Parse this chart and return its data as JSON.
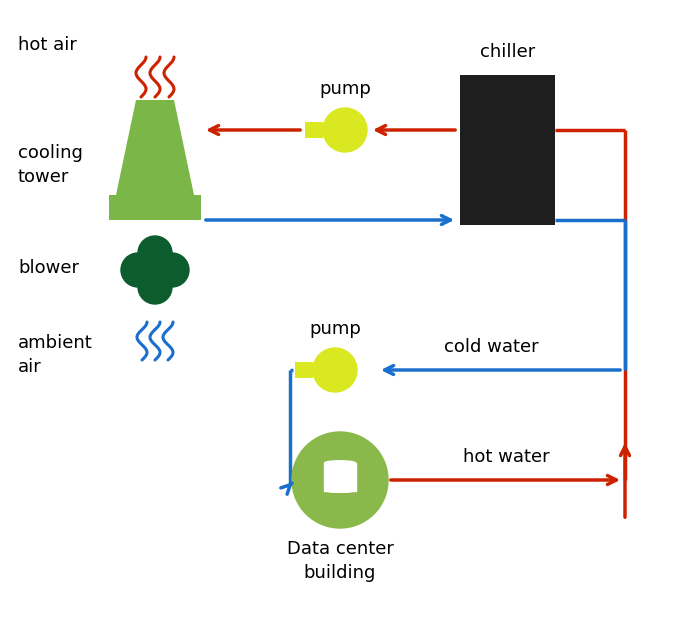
{
  "bg_color": "#ffffff",
  "red_color": "#cc2200",
  "blue_color": "#1a6fcc",
  "ct_green": "#7ab648",
  "bl_green": "#0d5c2e",
  "pump_yellow": "#d9e821",
  "chiller_black": "#1e1e1e",
  "dc_green": "#8ab84a",
  "fig_w": 6.8,
  "fig_h": 6.17,
  "dpi": 100,
  "labels": {
    "hot_air": "hot air",
    "cooling_tower": "cooling\ntower",
    "blower": "blower",
    "ambient_air": "ambient\nair",
    "pump_top": "pump",
    "pump_bot": "pump",
    "chiller": "chiller",
    "cold_water": "cold water",
    "hot_water": "hot water",
    "datacenter": "Data center\nbuilding"
  },
  "font_size": 13
}
